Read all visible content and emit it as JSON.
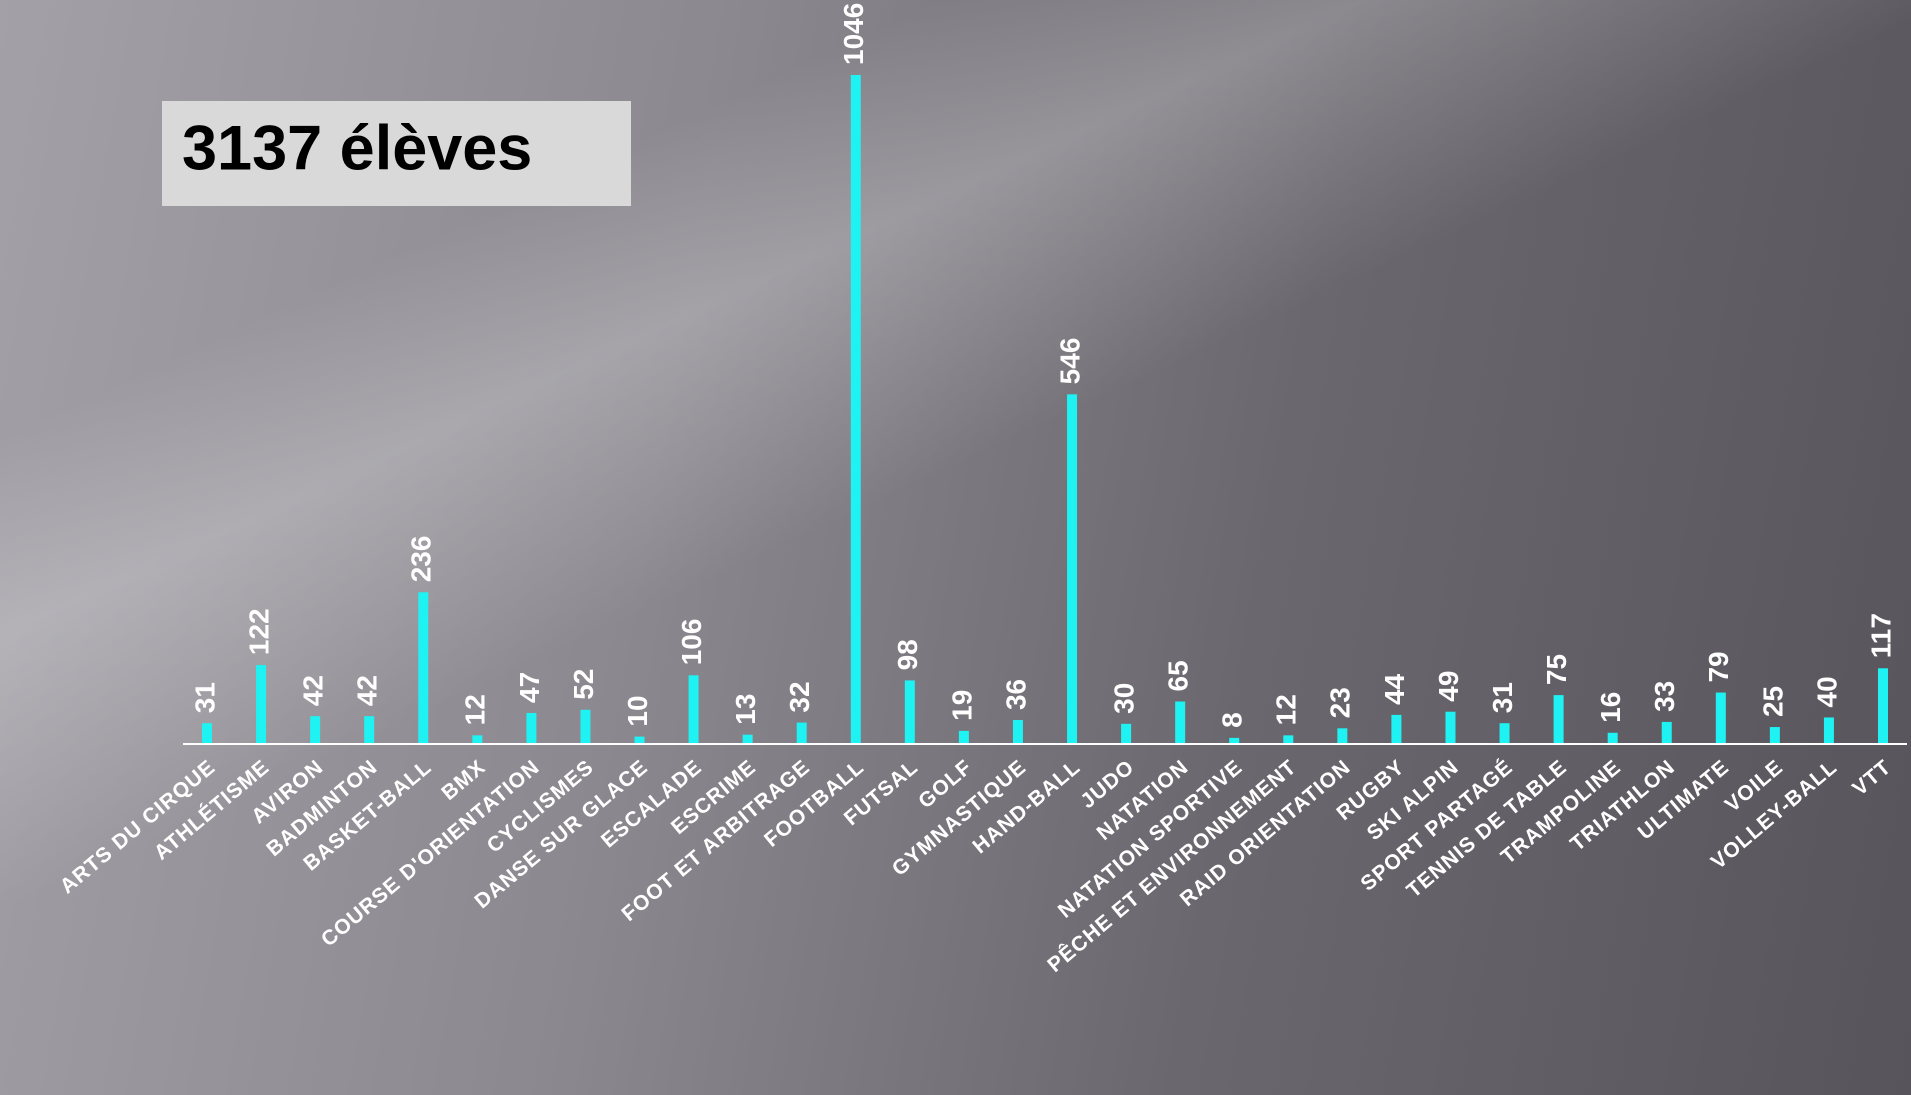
{
  "chart_data": {
    "type": "bar",
    "annotation": "3137 élèves",
    "categories": [
      "ARTS DU CIRQUE",
      "ATHLÉTISME",
      "AVIRON",
      "BADMINTON",
      "BASKET-BALL",
      "BMX",
      "COURSE D'ORIENTATION",
      "CYCLISMES",
      "DANSE SUR GLACE",
      "ESCALADE",
      "ESCRIME",
      "FOOT ET ARBITRAGE",
      "FOOTBALL",
      "FUTSAL",
      "GOLF",
      "GYMNASTIQUE",
      "HAND-BALL",
      "JUDO",
      "NATATION",
      "NATATION SPORTIVE",
      "PÊCHE ET ENVIRONNEMENT",
      "RAID ORIENTATION",
      "RUGBY",
      "SKI ALPIN",
      "SPORT PARTAGÉ",
      "TENNIS DE TABLE",
      "TRAMPOLINE",
      "TRIATHLON",
      "ULTIMATE",
      "VOILE",
      "VOLLEY-BALL",
      "VTT"
    ],
    "values": [
      31,
      122,
      42,
      42,
      236,
      12,
      47,
      52,
      10,
      106,
      13,
      32,
      1046,
      98,
      19,
      36,
      546,
      30,
      65,
      8,
      12,
      23,
      44,
      49,
      31,
      75,
      16,
      33,
      79,
      25,
      40,
      117
    ],
    "color": "#1ef2f2"
  }
}
